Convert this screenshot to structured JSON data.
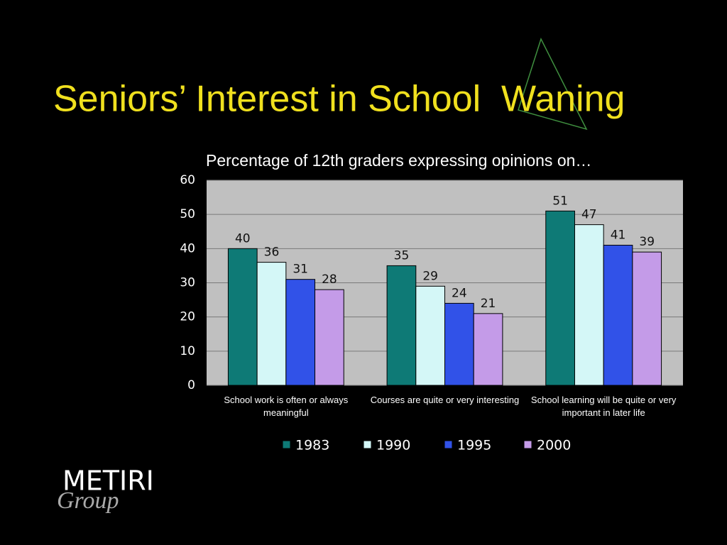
{
  "chart_data": {
    "type": "bar",
    "title": "Seniors’ Interest in School  Waning",
    "subtitle": "Percentage of 12th graders expressing opinions on…",
    "categories": [
      "School work is often or always meaningful",
      "Courses are quite or very interesting",
      "School learning will be quite or very important in later life"
    ],
    "series": [
      {
        "name": "1983",
        "color": "#0e7a76",
        "values": [
          40,
          35,
          51
        ]
      },
      {
        "name": "1990",
        "color": "#d4f7f7",
        "values": [
          36,
          29,
          47
        ]
      },
      {
        "name": "1995",
        "color": "#3152e8",
        "values": [
          31,
          24,
          41
        ]
      },
      {
        "name": "2000",
        "color": "#c49be8",
        "values": [
          28,
          21,
          39
        ]
      }
    ],
    "ylim": [
      0,
      60
    ],
    "yticks": [
      0,
      10,
      20,
      30,
      40,
      50,
      60
    ],
    "grid": true,
    "legend": "bottom"
  },
  "logo": {
    "name": "METIRI",
    "sub": "Group"
  }
}
